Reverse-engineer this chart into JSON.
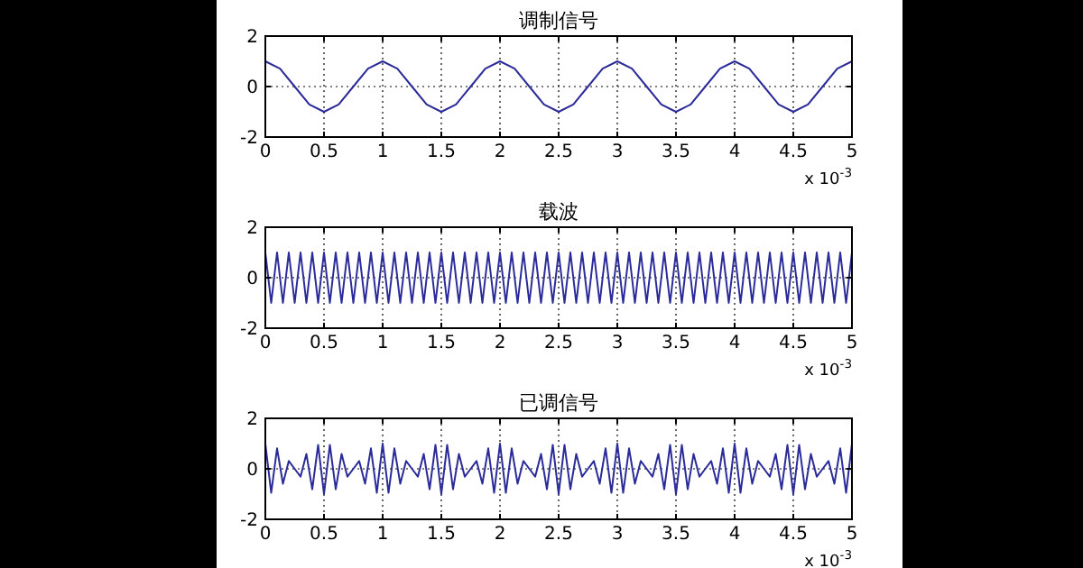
{
  "chart_data": [
    {
      "type": "line",
      "title": "调制信号",
      "annotations": [
        "x 10$^{-3}$"
      ],
      "grid": true,
      "xlim": [
        0,
        5
      ],
      "ylim": [
        -2,
        2
      ],
      "xticks": [
        0,
        0.5,
        1,
        1.5,
        2,
        2.5,
        3,
        3.5,
        4,
        4.5,
        5
      ],
      "yticks": [
        -2,
        0,
        2
      ],
      "x": [
        0,
        0.125,
        0.25,
        0.375,
        0.5,
        0.625,
        0.75,
        0.875,
        1,
        1.125,
        1.25,
        1.375,
        1.5,
        1.625,
        1.75,
        1.875,
        2,
        2.125,
        2.25,
        2.375,
        2.5,
        2.625,
        2.75,
        2.875,
        3,
        3.125,
        3.25,
        3.375,
        3.5,
        3.625,
        3.75,
        3.875,
        4,
        4.125,
        4.25,
        4.375,
        4.5,
        4.625,
        4.75,
        4.875,
        5
      ],
      "series": [
        {
          "color": "#2b2b99",
          "values": [
            1,
            0.71,
            0,
            -0.71,
            -1,
            -0.71,
            0,
            0.71,
            1,
            0.71,
            0,
            -0.71,
            -1,
            -0.71,
            0,
            0.71,
            1,
            0.71,
            0,
            -0.71,
            -1,
            -0.71,
            0,
            0.71,
            1,
            0.71,
            0,
            -0.71,
            -1,
            -0.71,
            0,
            0.71,
            1,
            0.71,
            0,
            -0.71,
            -1,
            -0.71,
            0,
            0.71,
            1
          ]
        }
      ]
    },
    {
      "type": "line",
      "title": "载波",
      "annotations": [
        "x 10$^{-3}$"
      ],
      "grid": true,
      "xlim": [
        0,
        5
      ],
      "ylim": [
        -2,
        2
      ],
      "xticks": [
        0,
        0.5,
        1,
        1.5,
        2,
        2.5,
        3,
        3.5,
        4,
        4.5,
        5
      ],
      "yticks": [
        -2,
        0,
        2
      ],
      "x": [
        0,
        0.05,
        0.1,
        0.15,
        0.2,
        0.25,
        0.3,
        0.35,
        0.4,
        0.45,
        0.5,
        0.55,
        0.6,
        0.65,
        0.7,
        0.75,
        0.8,
        0.85,
        0.9,
        0.95,
        1,
        1.05,
        1.1,
        1.15,
        1.2,
        1.25,
        1.3,
        1.35,
        1.4,
        1.45,
        1.5,
        1.55,
        1.6,
        1.65,
        1.7,
        1.75,
        1.8,
        1.85,
        1.9,
        1.95,
        2,
        2.05,
        2.1,
        2.15,
        2.2,
        2.25,
        2.3,
        2.35,
        2.4,
        2.45,
        2.5,
        2.55,
        2.6,
        2.65,
        2.7,
        2.75,
        2.8,
        2.85,
        2.9,
        2.95,
        3,
        3.05,
        3.1,
        3.15,
        3.2,
        3.25,
        3.3,
        3.35,
        3.4,
        3.45,
        3.5,
        3.55,
        3.6,
        3.65,
        3.7,
        3.75,
        3.8,
        3.85,
        3.9,
        3.95,
        4,
        4.05,
        4.1,
        4.15,
        4.2,
        4.25,
        4.3,
        4.35,
        4.4,
        4.45,
        4.5,
        4.55,
        4.6,
        4.65,
        4.7,
        4.75,
        4.8,
        4.85,
        4.9,
        4.95,
        5
      ],
      "series": [
        {
          "color": "#2b2b99",
          "values": [
            1,
            -1,
            1,
            -1,
            1,
            -1,
            1,
            -1,
            1,
            -1,
            1,
            -1,
            1,
            -1,
            1,
            -1,
            1,
            -1,
            1,
            -1,
            1,
            -1,
            1,
            -1,
            1,
            -1,
            1,
            -1,
            1,
            -1,
            1,
            -1,
            1,
            -1,
            1,
            -1,
            1,
            -1,
            1,
            -1,
            1,
            -1,
            1,
            -1,
            1,
            -1,
            1,
            -1,
            1,
            -1,
            1,
            -1,
            1,
            -1,
            1,
            -1,
            1,
            -1,
            1,
            -1,
            1,
            -1,
            1,
            -1,
            1,
            -1,
            1,
            -1,
            1,
            -1,
            1,
            -1,
            1,
            -1,
            1,
            -1,
            1,
            -1,
            1,
            -1,
            1,
            -1,
            1,
            -1,
            1,
            -1,
            1,
            -1,
            1,
            -1,
            1,
            -1,
            1,
            -1,
            1,
            -1,
            1,
            -1,
            1,
            -1,
            1
          ]
        }
      ]
    },
    {
      "type": "line",
      "title": "已调信号",
      "annotations": [
        "x 10$^{-3}$"
      ],
      "grid": true,
      "xlim": [
        0,
        5
      ],
      "ylim": [
        -2,
        2
      ],
      "xticks": [
        0,
        0.5,
        1,
        1.5,
        2,
        2.5,
        3,
        3.5,
        4,
        4.5,
        5
      ],
      "yticks": [
        -2,
        0,
        2
      ],
      "x": [
        0,
        0.05,
        0.1,
        0.15,
        0.2,
        0.25,
        0.3,
        0.35,
        0.4,
        0.45,
        0.5,
        0.55,
        0.6,
        0.65,
        0.7,
        0.75,
        0.8,
        0.85,
        0.9,
        0.95,
        1,
        1.05,
        1.1,
        1.15,
        1.2,
        1.25,
        1.3,
        1.35,
        1.4,
        1.45,
        1.5,
        1.55,
        1.6,
        1.65,
        1.7,
        1.75,
        1.8,
        1.85,
        1.9,
        1.95,
        2,
        2.05,
        2.1,
        2.15,
        2.2,
        2.25,
        2.3,
        2.35,
        2.4,
        2.45,
        2.5,
        2.55,
        2.6,
        2.65,
        2.7,
        2.75,
        2.8,
        2.85,
        2.9,
        2.95,
        3,
        3.05,
        3.1,
        3.15,
        3.2,
        3.25,
        3.3,
        3.35,
        3.4,
        3.45,
        3.5,
        3.55,
        3.6,
        3.65,
        3.7,
        3.75,
        3.8,
        3.85,
        3.9,
        3.95,
        4,
        4.05,
        4.1,
        4.15,
        4.2,
        4.25,
        4.3,
        4.35,
        4.4,
        4.45,
        4.5,
        4.55,
        4.6,
        4.65,
        4.7,
        4.75,
        4.8,
        4.85,
        4.9,
        4.95,
        5
      ],
      "series": [
        {
          "color": "#2b2b99",
          "values": [
            1,
            -0.95,
            0.81,
            -0.59,
            0.31,
            0,
            -0.31,
            0.59,
            -0.81,
            0.95,
            -1,
            0.95,
            -0.81,
            0.59,
            -0.31,
            0,
            0.31,
            -0.59,
            0.81,
            -0.95,
            1,
            -0.95,
            0.81,
            -0.59,
            0.31,
            0,
            -0.31,
            0.59,
            -0.81,
            0.95,
            -1,
            0.95,
            -0.81,
            0.59,
            -0.31,
            0,
            0.31,
            -0.59,
            0.81,
            -0.95,
            1,
            -0.95,
            0.81,
            -0.59,
            0.31,
            0,
            -0.31,
            0.59,
            -0.81,
            0.95,
            -1,
            0.95,
            -0.81,
            0.59,
            -0.31,
            0,
            0.31,
            -0.59,
            0.81,
            -0.95,
            1,
            -0.95,
            0.81,
            -0.59,
            0.31,
            0,
            -0.31,
            0.59,
            -0.81,
            0.95,
            -1,
            0.95,
            -0.81,
            0.59,
            -0.31,
            0,
            0.31,
            -0.59,
            0.81,
            -0.95,
            1,
            -0.95,
            0.81,
            -0.59,
            0.31,
            0,
            -0.31,
            0.59,
            -0.81,
            0.95,
            -1,
            0.95,
            -0.81,
            0.59,
            -0.31,
            0,
            0.31,
            -0.59,
            0.81,
            -0.95,
            1
          ]
        }
      ]
    }
  ]
}
